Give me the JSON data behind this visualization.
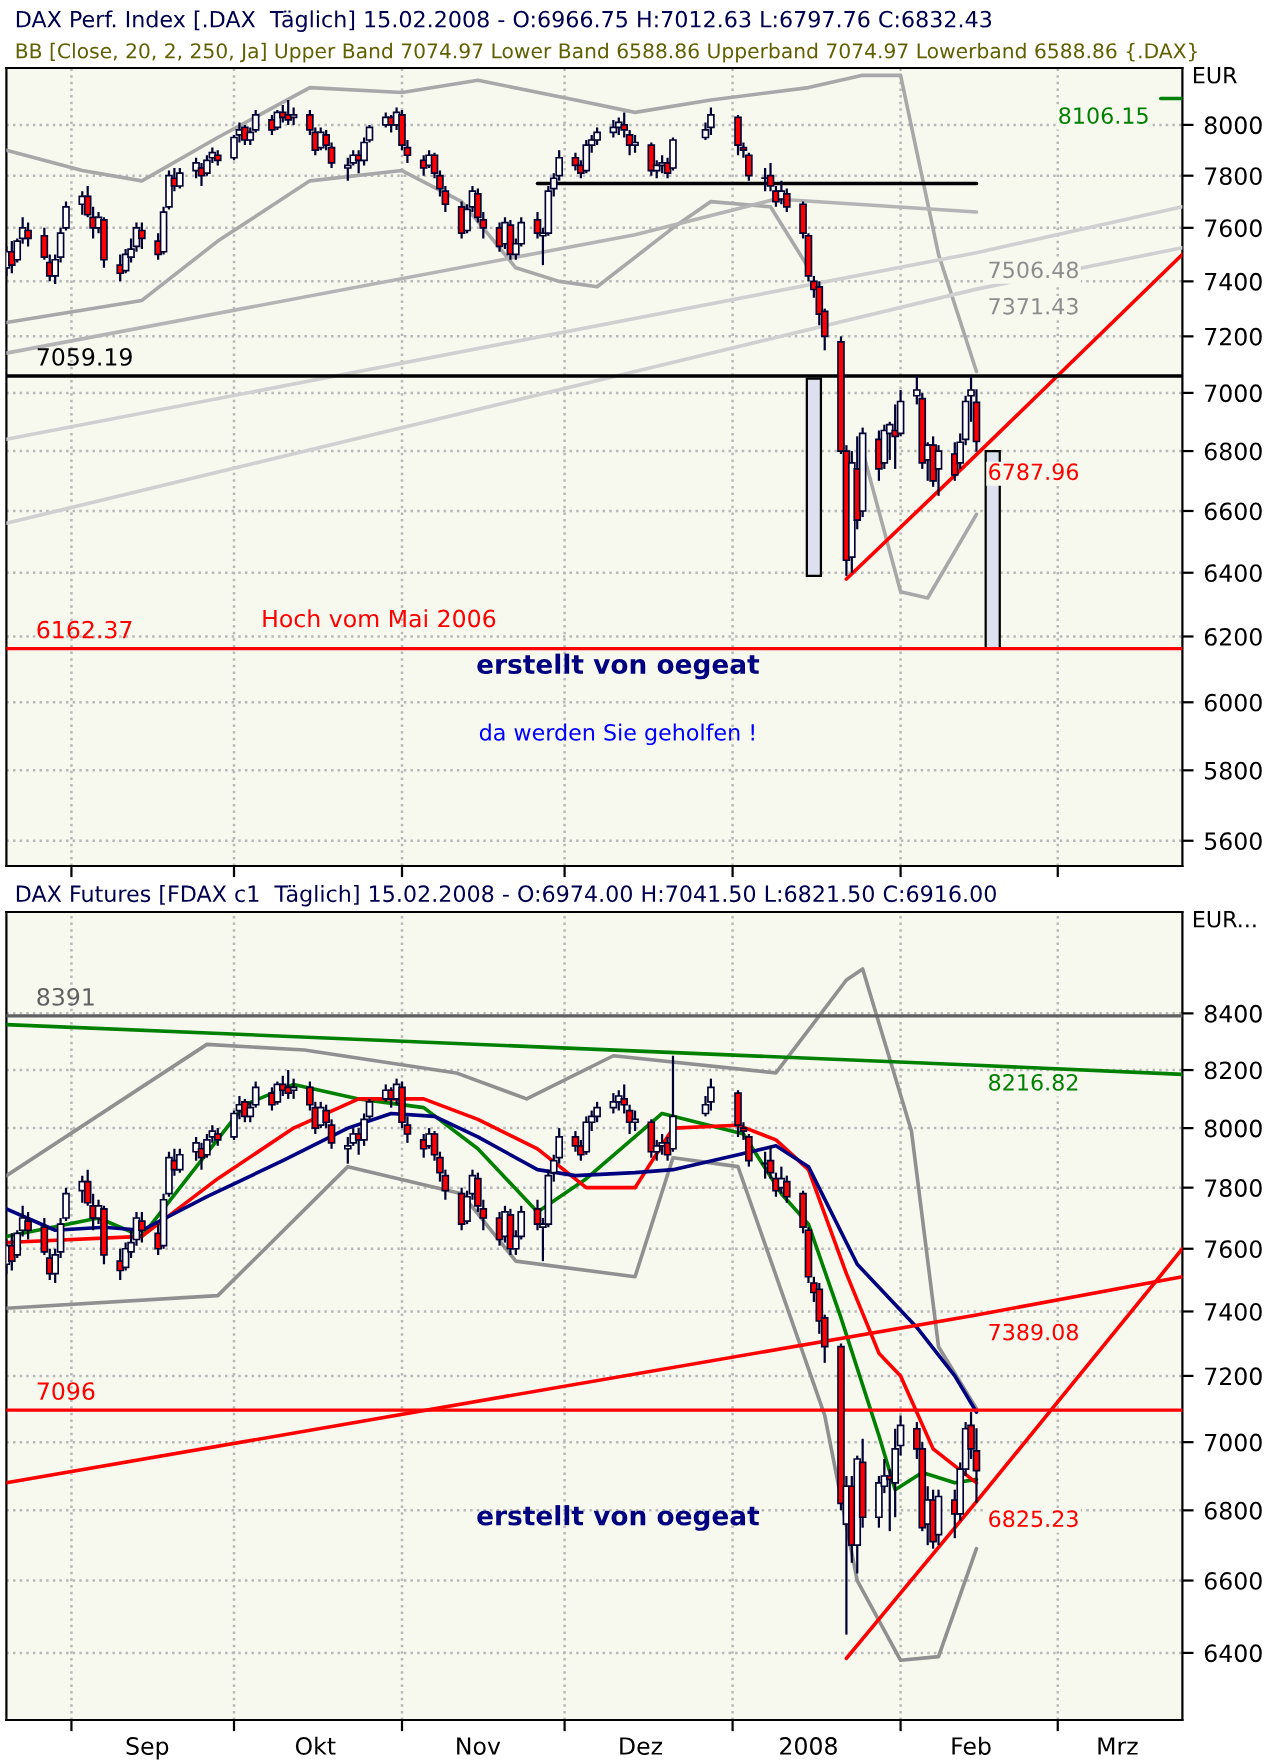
{
  "chart_data": [
    {
      "type": "candlestick",
      "title": "DAX Perf. Index [.DAX  Täglich] 15.02.2008 - O:6966.75 H:7012.63 L:6797.76 C:6832.43",
      "subtitle": "BB [Close, 20, 2, 250, Ja] Upper Band 7074.97 Lower Band 6588.86 Upperband 7074.97 Lowerband 6588.86 {.DAX}",
      "ylabel": "EUR",
      "x": [
        "2007-08-20",
        "2007-08-21",
        "2007-08-22",
        "2007-08-23",
        "2007-08-24",
        "2007-08-27",
        "2007-08-28",
        "2007-08-29",
        "2007-08-30",
        "2007-08-31",
        "2007-09-03",
        "2007-09-04",
        "2007-09-05",
        "2007-09-06",
        "2007-09-07",
        "2007-09-10",
        "2007-09-11",
        "2007-09-12",
        "2007-09-13",
        "2007-09-14",
        "2007-09-17",
        "2007-09-18",
        "2007-09-19",
        "2007-09-20",
        "2007-09-21",
        "2007-09-24",
        "2007-09-25",
        "2007-09-26",
        "2007-09-27",
        "2007-09-28",
        "2007-10-01",
        "2007-10-02",
        "2007-10-03",
        "2007-10-04",
        "2007-10-05",
        "2007-10-08",
        "2007-10-09",
        "2007-10-10",
        "2007-10-11",
        "2007-10-12",
        "2007-10-15",
        "2007-10-16",
        "2007-10-17",
        "2007-10-18",
        "2007-10-19",
        "2007-10-22",
        "2007-10-23",
        "2007-10-24",
        "2007-10-25",
        "2007-10-26",
        "2007-10-29",
        "2007-10-30",
        "2007-10-31",
        "2007-11-01",
        "2007-11-02",
        "2007-11-05",
        "2007-11-06",
        "2007-11-07",
        "2007-11-08",
        "2007-11-09",
        "2007-11-12",
        "2007-11-13",
        "2007-11-14",
        "2007-11-15",
        "2007-11-16",
        "2007-11-19",
        "2007-11-20",
        "2007-11-21",
        "2007-11-22",
        "2007-11-23",
        "2007-11-26",
        "2007-11-27",
        "2007-11-28",
        "2007-11-29",
        "2007-11-30",
        "2007-12-03",
        "2007-12-04",
        "2007-12-05",
        "2007-12-06",
        "2007-12-07",
        "2007-12-10",
        "2007-12-11",
        "2007-12-12",
        "2007-12-13",
        "2007-12-14",
        "2007-12-17",
        "2007-12-18",
        "2007-12-19",
        "2007-12-20",
        "2007-12-21",
        "2007-12-27",
        "2007-12-28",
        "2008-01-02",
        "2008-01-03",
        "2008-01-04",
        "2008-01-07",
        "2008-01-08",
        "2008-01-09",
        "2008-01-10",
        "2008-01-11",
        "2008-01-14",
        "2008-01-15",
        "2008-01-16",
        "2008-01-17",
        "2008-01-18",
        "2008-01-21",
        "2008-01-22",
        "2008-01-23",
        "2008-01-24",
        "2008-01-25",
        "2008-01-28",
        "2008-01-29",
        "2008-01-30",
        "2008-01-31",
        "2008-02-01",
        "2008-02-04",
        "2008-02-05",
        "2008-02-06",
        "2008-02-07",
        "2008-02-08",
        "2008-02-11",
        "2008-02-12",
        "2008-02-13",
        "2008-02-14",
        "2008-02-15"
      ],
      "ohlc": [
        [
          7450,
          7530,
          7420,
          7510
        ],
        [
          7510,
          7550,
          7430,
          7460
        ],
        [
          7480,
          7560,
          7470,
          7550
        ],
        [
          7560,
          7640,
          7540,
          7600
        ],
        [
          7590,
          7620,
          7530,
          7560
        ],
        [
          7570,
          7600,
          7480,
          7490
        ],
        [
          7470,
          7500,
          7400,
          7420
        ],
        [
          7420,
          7500,
          7390,
          7480
        ],
        [
          7490,
          7600,
          7470,
          7580
        ],
        [
          7600,
          7700,
          7590,
          7680
        ],
        [
          7690,
          7740,
          7650,
          7720
        ],
        [
          7720,
          7760,
          7640,
          7650
        ],
        [
          7640,
          7680,
          7560,
          7600
        ],
        [
          7600,
          7660,
          7580,
          7640
        ],
        [
          7630,
          7640,
          7450,
          7480
        ],
        [
          7460,
          7500,
          7400,
          7430
        ],
        [
          7440,
          7520,
          7430,
          7500
        ],
        [
          7490,
          7560,
          7470,
          7520
        ],
        [
          7530,
          7620,
          7510,
          7600
        ],
        [
          7590,
          7620,
          7520,
          7560
        ],
        [
          7550,
          7580,
          7480,
          7500
        ],
        [
          7510,
          7680,
          7500,
          7660
        ],
        [
          7680,
          7820,
          7670,
          7800
        ],
        [
          7790,
          7830,
          7740,
          7760
        ],
        [
          7760,
          7830,
          7750,
          7810
        ],
        [
          7820,
          7870,
          7790,
          7850
        ],
        [
          7830,
          7850,
          7760,
          7800
        ],
        [
          7810,
          7880,
          7800,
          7860
        ],
        [
          7870,
          7910,
          7850,
          7890
        ],
        [
          7880,
          7900,
          7840,
          7860
        ],
        [
          7870,
          7960,
          7860,
          7950
        ],
        [
          7960,
          8010,
          7930,
          7980
        ],
        [
          7990,
          8000,
          7920,
          7940
        ],
        [
          7940,
          7990,
          7920,
          7970
        ],
        [
          7980,
          8060,
          7970,
          8040
        ],
        [
          8020,
          8040,
          7960,
          7980
        ],
        [
          7990,
          8060,
          7980,
          8050
        ],
        [
          8050,
          8080,
          8010,
          8030
        ],
        [
          8040,
          8100,
          8000,
          8020
        ],
        [
          8030,
          8070,
          8000,
          8040
        ],
        [
          8040,
          8060,
          7960,
          7980
        ],
        [
          7970,
          7990,
          7880,
          7900
        ],
        [
          7910,
          7990,
          7900,
          7970
        ],
        [
          7960,
          7980,
          7900,
          7920
        ],
        [
          7910,
          7930,
          7830,
          7850
        ],
        [
          7830,
          7870,
          7780,
          7840
        ],
        [
          7850,
          7900,
          7840,
          7880
        ],
        [
          7880,
          7900,
          7810,
          7860
        ],
        [
          7860,
          7950,
          7840,
          7930
        ],
        [
          7940,
          8000,
          7930,
          7990
        ],
        [
          8000,
          8050,
          7990,
          8030
        ],
        [
          8030,
          8040,
          7970,
          8000
        ],
        [
          8000,
          8070,
          7980,
          8050
        ],
        [
          8040,
          8060,
          7900,
          7920
        ],
        [
          7910,
          7940,
          7850,
          7880
        ],
        [
          7860,
          7880,
          7800,
          7830
        ],
        [
          7840,
          7900,
          7830,
          7880
        ],
        [
          7880,
          7890,
          7790,
          7810
        ],
        [
          7800,
          7820,
          7720,
          7750
        ],
        [
          7740,
          7760,
          7660,
          7690
        ],
        [
          7680,
          7700,
          7560,
          7580
        ],
        [
          7590,
          7690,
          7580,
          7670
        ],
        [
          7680,
          7760,
          7660,
          7740
        ],
        [
          7730,
          7750,
          7620,
          7640
        ],
        [
          7630,
          7660,
          7560,
          7600
        ],
        [
          7600,
          7620,
          7510,
          7530
        ],
        [
          7540,
          7640,
          7520,
          7620
        ],
        [
          7610,
          7630,
          7480,
          7500
        ],
        [
          7500,
          7560,
          7480,
          7540
        ],
        [
          7540,
          7640,
          7530,
          7620
        ],
        [
          7630,
          7660,
          7560,
          7580
        ],
        [
          7570,
          7600,
          7460,
          7580
        ],
        [
          7580,
          7760,
          7570,
          7740
        ],
        [
          7750,
          7810,
          7720,
          7790
        ],
        [
          7800,
          7900,
          7780,
          7870
        ],
        [
          7870,
          7890,
          7820,
          7840
        ],
        [
          7840,
          7860,
          7790,
          7810
        ],
        [
          7820,
          7940,
          7810,
          7920
        ],
        [
          7920,
          7960,
          7890,
          7940
        ],
        [
          7940,
          7990,
          7920,
          7970
        ],
        [
          7970,
          8020,
          7950,
          7990
        ],
        [
          7990,
          8030,
          7960,
          8010
        ],
        [
          8000,
          8050,
          7950,
          7980
        ],
        [
          7960,
          7980,
          7880,
          7920
        ],
        [
          7920,
          7960,
          7890,
          7930
        ],
        [
          7920,
          7930,
          7800,
          7820
        ],
        [
          7820,
          7860,
          7790,
          7840
        ],
        [
          7840,
          7880,
          7810,
          7850
        ],
        [
          7850,
          7870,
          7790,
          7810
        ],
        [
          7830,
          7950,
          7820,
          7940
        ],
        [
          7950,
          8010,
          7940,
          7980
        ],
        [
          7990,
          8070,
          7960,
          8040
        ],
        [
          8030,
          8040,
          7880,
          7920
        ],
        [
          7910,
          7930,
          7870,
          7900
        ],
        [
          7880,
          7890,
          7780,
          7800
        ],
        [
          7790,
          7830,
          7740,
          7790
        ],
        [
          7800,
          7850,
          7740,
          7760
        ],
        [
          7740,
          7760,
          7680,
          7700
        ],
        [
          7710,
          7780,
          7690,
          7740
        ],
        [
          7730,
          7750,
          7660,
          7680
        ],
        [
          7690,
          7700,
          7560,
          7580
        ],
        [
          7570,
          7580,
          7400,
          7420
        ],
        [
          7400,
          7420,
          7340,
          7370
        ],
        [
          7380,
          7400,
          7240,
          7280
        ],
        [
          7290,
          7300,
          7150,
          7200
        ],
        [
          7180,
          7200,
          6790,
          6800
        ],
        [
          6800,
          6820,
          6390,
          6440
        ],
        [
          6450,
          6800,
          6400,
          6760
        ],
        [
          6740,
          6850,
          6540,
          6570
        ],
        [
          6600,
          6880,
          6580,
          6860
        ],
        [
          6840,
          6870,
          6700,
          6740
        ],
        [
          6760,
          6890,
          6740,
          6870
        ],
        [
          6860,
          6900,
          6770,
          6890
        ],
        [
          6870,
          6960,
          6740,
          6850
        ],
        [
          6860,
          7010,
          6850,
          6970
        ],
        [
          6990,
          7060,
          6960,
          7010
        ],
        [
          6980,
          7000,
          6740,
          6760
        ],
        [
          6770,
          6830,
          6700,
          6820
        ],
        [
          6820,
          6850,
          6680,
          6700
        ],
        [
          6740,
          6820,
          6650,
          6800
        ],
        [
          6790,
          6830,
          6700,
          6720
        ],
        [
          6760,
          6860,
          6740,
          6830
        ],
        [
          6840,
          6990,
          6820,
          6970
        ],
        [
          6990,
          7060,
          6900,
          7010
        ],
        [
          6966.75,
          7012.63,
          6797.76,
          6832.43
        ]
      ],
      "series": [
        {
          "type": "line",
          "color": "#a8a8a8",
          "x": [
            "2007-08-20",
            "2007-09-03",
            "2007-09-14",
            "2007-09-28",
            "2007-10-15",
            "2007-11-01",
            "2007-11-15",
            "2007-12-03",
            "2007-12-14",
            "2007-12-28",
            "2008-01-15",
            "2008-01-25",
            "2008-02-01",
            "2008-02-08",
            "2008-02-15"
          ],
          "values": [
            7900,
            7820,
            7780,
            7950,
            8150,
            8130,
            8180,
            8100,
            8050,
            8100,
            8150,
            8200,
            8200,
            7500,
            7074.97
          ]
        },
        {
          "type": "line",
          "color": "#a8a8a8",
          "x": [
            "2007-08-20",
            "2007-09-14",
            "2007-09-28",
            "2007-10-15",
            "2007-11-01",
            "2007-11-12",
            "2007-11-22",
            "2007-11-30",
            "2007-12-07",
            "2007-12-21",
            "2007-12-28",
            "2008-01-08",
            "2008-01-15",
            "2008-01-21",
            "2008-01-25",
            "2008-02-01",
            "2008-02-06",
            "2008-02-15"
          ],
          "values": [
            7250,
            7330,
            7550,
            7780,
            7820,
            7700,
            7450,
            7400,
            7380,
            7600,
            7700,
            7680,
            7450,
            null,
            6800,
            6340,
            6320,
            6588.86
          ]
        },
        {
          "type": "line",
          "color": "#b4b4b4",
          "x": [
            "2007-08-20",
            "2007-12-14",
            "2008-01-09",
            "2008-02-15"
          ],
          "values": [
            7140,
            7574,
            7710,
            7660
          ]
        },
        {
          "type": "line",
          "color": "#d0d0d0",
          "x": [
            "2007-08-20",
            "2008-02-15",
            "2008-03-24"
          ],
          "values": [
            6840,
            7506.48,
            7680
          ],
          "value_labels": [
            null,
            "7506.48",
            null
          ]
        },
        {
          "type": "line",
          "color": "#d0d0d0",
          "x": [
            "2007-08-20",
            "2008-02-15",
            "2008-03-24"
          ],
          "values": [
            6560,
            7371.43,
            7525
          ],
          "value_labels": [
            null,
            "7371.43",
            null
          ]
        },
        {
          "type": "line",
          "color": "#ff0000",
          "x": [
            "2008-01-22",
            "2008-02-15",
            "2008-03-24"
          ],
          "values": [
            6380,
            6787.96,
            7500
          ],
          "value_labels": [
            null,
            "6787.96",
            null
          ]
        },
        {
          "type": "line",
          "color": "#000000",
          "x": [
            "2007-11-26",
            "2008-02-15"
          ],
          "values": [
            7770,
            7770
          ]
        },
        {
          "type": "line",
          "color": "#008000",
          "x": [
            "2008-03-20",
            "2008-03-24"
          ],
          "values": [
            8106.15,
            8106.15
          ],
          "value_labels": [
            "8106.15",
            null
          ]
        },
        {
          "type": "bar",
          "color": "#dde0ef",
          "x": [
            "2008-01-16",
            "2008-02-18"
          ],
          "base": [
            6390,
            6162.37
          ],
          "values": [
            660,
            637.63
          ]
        }
      ],
      "ref_lines": [
        {
          "axis": "y",
          "value": 7059.19,
          "label": "7059.19",
          "color": "#000000"
        },
        {
          "axis": "y",
          "value": 6162.37,
          "label": "6162.37",
          "color": "#ff0000"
        }
      ],
      "annotations": [
        {
          "text": "Hoch vom Mai 2006",
          "x": "2007-10-06",
          "y": 6162.37
        },
        "erstellt von oegeat",
        "da werden Sie geholfen !"
      ],
      "log": true,
      "grid": true,
      "tick_labels": "y",
      "xlim": [
        "2007-08-20",
        "2008-03-24"
      ],
      "xticks": [
        {
          "value": "2007-09-01",
          "label": null
        },
        {
          "value": "2007-10-01",
          "label": null
        },
        {
          "value": "2007-11-01",
          "label": null
        },
        {
          "value": "2007-12-01",
          "label": null
        },
        {
          "value": "2008-01-01",
          "label": null
        },
        {
          "value": "2008-02-01",
          "label": null
        },
        {
          "value": "2008-03-01",
          "label": null
        }
      ],
      "ylim": [
        5530,
        8230
      ],
      "yticks": [
        5600,
        5800,
        6000,
        6200,
        6400,
        6600,
        6800,
        7000,
        7200,
        7400,
        7600,
        7800,
        8000
      ]
    },
    {
      "type": "candlestick",
      "title": "DAX Futures [FDAX c1  Täglich] 15.02.2008 - O:6974.00 H:7041.50 L:6821.50 C:6916.00",
      "ylabel": "EUR...",
      "x": [
        "2007-08-20",
        "2007-08-21",
        "2007-08-22",
        "2007-08-23",
        "2007-08-24",
        "2007-08-27",
        "2007-08-28",
        "2007-08-29",
        "2007-08-30",
        "2007-08-31",
        "2007-09-03",
        "2007-09-04",
        "2007-09-05",
        "2007-09-06",
        "2007-09-07",
        "2007-09-10",
        "2007-09-11",
        "2007-09-12",
        "2007-09-13",
        "2007-09-14",
        "2007-09-17",
        "2007-09-18",
        "2007-09-19",
        "2007-09-20",
        "2007-09-21",
        "2007-09-24",
        "2007-09-25",
        "2007-09-26",
        "2007-09-27",
        "2007-09-28",
        "2007-10-01",
        "2007-10-02",
        "2007-10-03",
        "2007-10-04",
        "2007-10-05",
        "2007-10-08",
        "2007-10-09",
        "2007-10-10",
        "2007-10-11",
        "2007-10-12",
        "2007-10-15",
        "2007-10-16",
        "2007-10-17",
        "2007-10-18",
        "2007-10-19",
        "2007-10-22",
        "2007-10-23",
        "2007-10-24",
        "2007-10-25",
        "2007-10-26",
        "2007-10-29",
        "2007-10-30",
        "2007-10-31",
        "2007-11-01",
        "2007-11-02",
        "2007-11-05",
        "2007-11-06",
        "2007-11-07",
        "2007-11-08",
        "2007-11-09",
        "2007-11-12",
        "2007-11-13",
        "2007-11-14",
        "2007-11-15",
        "2007-11-16",
        "2007-11-19",
        "2007-11-20",
        "2007-11-21",
        "2007-11-22",
        "2007-11-23",
        "2007-11-26",
        "2007-11-27",
        "2007-11-28",
        "2007-11-29",
        "2007-11-30",
        "2007-12-03",
        "2007-12-04",
        "2007-12-05",
        "2007-12-06",
        "2007-12-07",
        "2007-12-10",
        "2007-12-11",
        "2007-12-12",
        "2007-12-13",
        "2007-12-14",
        "2007-12-17",
        "2007-12-18",
        "2007-12-19",
        "2007-12-20",
        "2007-12-21",
        "2007-12-27",
        "2007-12-28",
        "2008-01-02",
        "2008-01-03",
        "2008-01-04",
        "2008-01-07",
        "2008-01-08",
        "2008-01-09",
        "2008-01-10",
        "2008-01-11",
        "2008-01-14",
        "2008-01-15",
        "2008-01-16",
        "2008-01-17",
        "2008-01-18",
        "2008-01-21",
        "2008-01-22",
        "2008-01-23",
        "2008-01-24",
        "2008-01-25",
        "2008-01-28",
        "2008-01-29",
        "2008-01-30",
        "2008-01-31",
        "2008-02-01",
        "2008-02-04",
        "2008-02-05",
        "2008-02-06",
        "2008-02-07",
        "2008-02-08",
        "2008-02-11",
        "2008-02-12",
        "2008-02-13",
        "2008-02-14",
        "2008-02-15"
      ],
      "ohlc": [
        [
          7550,
          7630,
          7520,
          7610
        ],
        [
          7610,
          7650,
          7530,
          7560
        ],
        [
          7580,
          7660,
          7570,
          7650
        ],
        [
          7660,
          7740,
          7640,
          7700
        ],
        [
          7690,
          7720,
          7630,
          7660
        ],
        [
          7670,
          7700,
          7580,
          7590
        ],
        [
          7570,
          7600,
          7500,
          7520
        ],
        [
          7520,
          7600,
          7490,
          7580
        ],
        [
          7590,
          7700,
          7570,
          7680
        ],
        [
          7700,
          7800,
          7690,
          7780
        ],
        [
          7790,
          7840,
          7750,
          7820
        ],
        [
          7820,
          7860,
          7740,
          7750
        ],
        [
          7740,
          7780,
          7660,
          7700
        ],
        [
          7700,
          7760,
          7680,
          7740
        ],
        [
          7730,
          7740,
          7550,
          7580
        ],
        [
          7560,
          7600,
          7500,
          7530
        ],
        [
          7540,
          7620,
          7530,
          7600
        ],
        [
          7590,
          7660,
          7570,
          7620
        ],
        [
          7630,
          7720,
          7610,
          7700
        ],
        [
          7690,
          7720,
          7620,
          7660
        ],
        [
          7650,
          7680,
          7580,
          7600
        ],
        [
          7610,
          7780,
          7600,
          7760
        ],
        [
          7780,
          7920,
          7770,
          7900
        ],
        [
          7890,
          7930,
          7840,
          7860
        ],
        [
          7860,
          7930,
          7850,
          7910
        ],
        [
          7920,
          7970,
          7890,
          7950
        ],
        [
          7930,
          7950,
          7860,
          7900
        ],
        [
          7910,
          7980,
          7900,
          7960
        ],
        [
          7970,
          8010,
          7950,
          7990
        ],
        [
          7980,
          8000,
          7940,
          7960
        ],
        [
          7970,
          8060,
          7960,
          8050
        ],
        [
          8060,
          8110,
          8030,
          8080
        ],
        [
          8090,
          8100,
          8020,
          8040
        ],
        [
          8040,
          8090,
          8020,
          8070
        ],
        [
          8080,
          8160,
          8070,
          8140
        ],
        [
          8120,
          8140,
          8060,
          8080
        ],
        [
          8090,
          8160,
          8080,
          8150
        ],
        [
          8150,
          8180,
          8110,
          8130
        ],
        [
          8140,
          8200,
          8100,
          8120
        ],
        [
          8130,
          8170,
          8100,
          8140
        ],
        [
          8140,
          8160,
          8060,
          8080
        ],
        [
          8070,
          8090,
          7980,
          8000
        ],
        [
          8010,
          8090,
          8000,
          8070
        ],
        [
          8060,
          8080,
          8000,
          8020
        ],
        [
          8010,
          8030,
          7930,
          7950
        ],
        [
          7930,
          7970,
          7880,
          7940
        ],
        [
          7950,
          8000,
          7940,
          7980
        ],
        [
          7980,
          8000,
          7910,
          7960
        ],
        [
          7960,
          8050,
          7940,
          8030
        ],
        [
          8040,
          8100,
          8030,
          8090
        ],
        [
          8100,
          8150,
          8090,
          8130
        ],
        [
          8130,
          8140,
          8070,
          8100
        ],
        [
          8100,
          8170,
          8080,
          8150
        ],
        [
          8140,
          8160,
          8000,
          8020
        ],
        [
          8010,
          8040,
          7950,
          7980
        ],
        [
          7960,
          7980,
          7900,
          7930
        ],
        [
          7940,
          8000,
          7930,
          7980
        ],
        [
          7980,
          7990,
          7890,
          7910
        ],
        [
          7900,
          7920,
          7820,
          7850
        ],
        [
          7840,
          7860,
          7760,
          7790
        ],
        [
          7780,
          7800,
          7660,
          7680
        ],
        [
          7690,
          7790,
          7680,
          7770
        ],
        [
          7780,
          7860,
          7760,
          7840
        ],
        [
          7830,
          7850,
          7720,
          7740
        ],
        [
          7730,
          7760,
          7660,
          7700
        ],
        [
          7700,
          7720,
          7610,
          7630
        ],
        [
          7640,
          7740,
          7620,
          7720
        ],
        [
          7710,
          7730,
          7580,
          7600
        ],
        [
          7600,
          7660,
          7580,
          7640
        ],
        [
          7640,
          7740,
          7630,
          7720
        ],
        [
          7730,
          7760,
          7660,
          7680
        ],
        [
          7670,
          7700,
          7560,
          7680
        ],
        [
          7680,
          7860,
          7670,
          7840
        ],
        [
          7850,
          7910,
          7820,
          7890
        ],
        [
          7900,
          8000,
          7880,
          7970
        ],
        [
          7970,
          7990,
          7920,
          7940
        ],
        [
          7940,
          7960,
          7890,
          7910
        ],
        [
          7920,
          8040,
          7910,
          8020
        ],
        [
          8020,
          8060,
          7990,
          8040
        ],
        [
          8040,
          8090,
          8020,
          8070
        ],
        [
          8070,
          8120,
          8050,
          8090
        ],
        [
          8090,
          8130,
          8060,
          8110
        ],
        [
          8100,
          8150,
          8050,
          8080
        ],
        [
          8060,
          8080,
          7980,
          8020
        ],
        [
          8020,
          8060,
          7990,
          8030
        ],
        [
          8020,
          8030,
          7900,
          7920
        ],
        [
          7920,
          7960,
          7890,
          7940
        ],
        [
          7940,
          7980,
          7910,
          7950
        ],
        [
          7950,
          7970,
          7890,
          7910
        ],
        [
          7930,
          8250,
          7920,
          8040
        ],
        [
          8050,
          8110,
          8040,
          8080
        ],
        [
          8090,
          8170,
          8060,
          8140
        ],
        [
          8120,
          8130,
          7970,
          8010
        ],
        [
          8000,
          8020,
          7960,
          7990
        ],
        [
          7970,
          7980,
          7870,
          7890
        ],
        [
          7880,
          7920,
          7830,
          7880
        ],
        [
          7890,
          7940,
          7830,
          7850
        ],
        [
          7830,
          7850,
          7770,
          7790
        ],
        [
          7800,
          7870,
          7780,
          7830
        ],
        [
          7820,
          7840,
          7750,
          7770
        ],
        [
          7780,
          7790,
          7650,
          7670
        ],
        [
          7660,
          7670,
          7490,
          7510
        ],
        [
          7490,
          7510,
          7430,
          7460
        ],
        [
          7470,
          7490,
          7330,
          7370
        ],
        [
          7380,
          7390,
          7240,
          7290
        ],
        [
          7290,
          7300,
          6800,
          6820
        ],
        [
          6760,
          6900,
          6450,
          6870
        ],
        [
          6870,
          6900,
          6650,
          6700
        ],
        [
          6700,
          6960,
          6620,
          6950
        ],
        [
          6940,
          7010,
          6750,
          6780
        ],
        [
          6780,
          6900,
          6750,
          6880
        ],
        [
          6870,
          6950,
          6850,
          6900
        ],
        [
          6900,
          6920,
          6740,
          6890
        ],
        [
          6880,
          7040,
          6780,
          6980
        ],
        [
          6990,
          7080,
          6960,
          7050
        ],
        [
          7040,
          7060,
          6950,
          6980
        ],
        [
          6980,
          7000,
          6740,
          6750
        ],
        [
          6760,
          6870,
          6700,
          6830
        ],
        [
          6830,
          6860,
          6690,
          6710
        ],
        [
          6730,
          6860,
          6700,
          6840
        ],
        [
          6830,
          6860,
          6720,
          6790
        ],
        [
          6790,
          6940,
          6770,
          6920
        ],
        [
          6920,
          7060,
          6900,
          7040
        ],
        [
          7050,
          7090,
          6950,
          6980
        ],
        [
          6974.0,
          7041.5,
          6821.5,
          6916.0
        ]
      ],
      "series": [
        {
          "type": "line",
          "color": "#909090",
          "x": [
            "2007-08-20",
            "2007-09-26",
            "2007-10-14",
            "2007-11-11",
            "2007-11-24",
            "2007-12-10",
            "2008-01-09",
            "2008-01-22",
            "2008-01-25",
            "2008-02-03",
            "2008-02-08",
            "2008-02-15"
          ],
          "values": [
            7840,
            8290,
            8270,
            8190,
            8100,
            8250,
            8190,
            8520,
            8560,
            7990,
            7290,
            7100
          ]
        },
        {
          "type": "line",
          "color": "#909090",
          "x": [
            "2007-08-20",
            "2007-09-28",
            "2007-10-22",
            "2007-11-12",
            "2007-11-22",
            "2007-12-14",
            "2007-12-21",
            "2008-01-02",
            "2008-01-18",
            "2008-01-24",
            "2008-02-01",
            "2008-02-08",
            "2008-02-15"
          ],
          "values": [
            7410,
            7450,
            7870,
            7780,
            7560,
            7510,
            7900,
            7870,
            7080,
            6600,
            6380,
            6390,
            6690
          ]
        },
        {
          "type": "line",
          "color": "#008000",
          "x": [
            "2007-08-20",
            "2007-09-06",
            "2007-09-14",
            "2007-10-03",
            "2007-10-12",
            "2007-10-24",
            "2007-11-05",
            "2007-11-15",
            "2007-11-26",
            "2007-12-05",
            "2007-12-19",
            "2008-01-03",
            "2008-01-10",
            "2008-01-15",
            "2008-01-21",
            "2008-01-28",
            "2008-01-31",
            "2008-02-05",
            "2008-02-11",
            "2008-02-15"
          ],
          "values": [
            7640,
            7700,
            7640,
            8080,
            8150,
            8100,
            8070,
            7930,
            7720,
            7830,
            8050,
            7980,
            7780,
            7680,
            7380,
            7020,
            6860,
            6910,
            6880,
            6890
          ]
        },
        {
          "type": "line",
          "color": "#ff0000",
          "x": [
            "2007-08-20",
            "2007-09-14",
            "2007-09-28",
            "2007-10-12",
            "2007-10-24",
            "2007-11-05",
            "2007-11-15",
            "2007-11-26",
            "2007-12-05",
            "2007-12-14",
            "2007-12-21",
            "2008-01-02",
            "2008-01-09",
            "2008-01-15",
            "2008-01-22",
            "2008-01-28",
            "2008-02-01",
            "2008-02-07",
            "2008-02-15"
          ],
          "values": [
            7620,
            7640,
            7830,
            8000,
            8100,
            8100,
            8030,
            7930,
            7800,
            7800,
            8000,
            8010,
            7960,
            7860,
            7520,
            7270,
            7200,
            6980,
            6880
          ]
        },
        {
          "type": "line",
          "color": "#000080",
          "x": [
            "2007-08-20",
            "2007-08-29",
            "2007-09-07",
            "2007-09-14",
            "2007-09-26",
            "2007-10-10",
            "2007-10-22",
            "2007-10-30",
            "2007-11-07",
            "2007-11-15",
            "2007-11-26",
            "2007-12-03",
            "2007-12-14",
            "2007-12-21",
            "2008-01-02",
            "2008-01-09",
            "2008-01-15",
            "2008-01-24",
            "2008-02-04",
            "2008-02-11",
            "2008-02-15"
          ],
          "values": [
            7730,
            7660,
            7670,
            7660,
            7770,
            7890,
            8000,
            8050,
            8040,
            7970,
            7860,
            7840,
            7850,
            7860,
            7910,
            7940,
            7870,
            7550,
            7350,
            7200,
            7090
          ]
        },
        {
          "type": "line",
          "color": "#008000",
          "x": [
            "2007-08-20",
            "2008-02-15",
            "2008-03-24"
          ],
          "values": [
            8360,
            8216.82,
            8185
          ],
          "value_labels": [
            null,
            "8216.82",
            null
          ]
        },
        {
          "type": "line",
          "color": "#ff0000",
          "x": [
            "2007-08-20",
            "2008-02-15",
            "2008-03-24"
          ],
          "values": [
            6880,
            7389.08,
            7510
          ],
          "value_labels": [
            null,
            "7389.08",
            null
          ]
        },
        {
          "type": "line",
          "color": "#ff0000",
          "x": [
            "2008-01-22",
            "2008-02-15",
            "2008-03-24"
          ],
          "values": [
            6385,
            6825.23,
            7600
          ],
          "value_labels": [
            null,
            "6825.23",
            null
          ]
        }
      ],
      "ref_lines": [
        {
          "axis": "y",
          "value": 8391,
          "label": "8391",
          "color": "#606060"
        },
        {
          "axis": "y",
          "value": 7096,
          "label": "7096",
          "color": "#ff0000"
        }
      ],
      "annotations": [
        "erstellt von oegeat"
      ],
      "log": true,
      "grid": true,
      "xlim": [
        "2007-08-20",
        "2008-03-24"
      ],
      "xticks": [
        {
          "value": "2007-09-01",
          "label": null
        },
        {
          "value": "2007-09-15",
          "label": "Sep"
        },
        {
          "value": "2007-10-01",
          "label": null
        },
        {
          "value": "2007-10-16",
          "label": "Okt"
        },
        {
          "value": "2007-11-01",
          "label": null
        },
        {
          "value": "2007-11-15",
          "label": "Nov"
        },
        {
          "value": "2007-12-01",
          "label": null
        },
        {
          "value": "2007-12-15",
          "label": "Dez"
        },
        {
          "value": "2008-01-01",
          "label": null
        },
        {
          "value": "2008-01-15",
          "label": "2008"
        },
        {
          "value": "2008-02-01",
          "label": null
        },
        {
          "value": "2008-02-14",
          "label": "Feb"
        },
        {
          "value": "2008-03-01",
          "label": null
        },
        {
          "value": "2008-03-12",
          "label": "Mrz"
        }
      ],
      "ylim": [
        6220,
        8770
      ],
      "yticks": [
        6400,
        6600,
        6800,
        7000,
        7200,
        7400,
        7600,
        7800,
        8000,
        8200,
        8400
      ]
    }
  ]
}
